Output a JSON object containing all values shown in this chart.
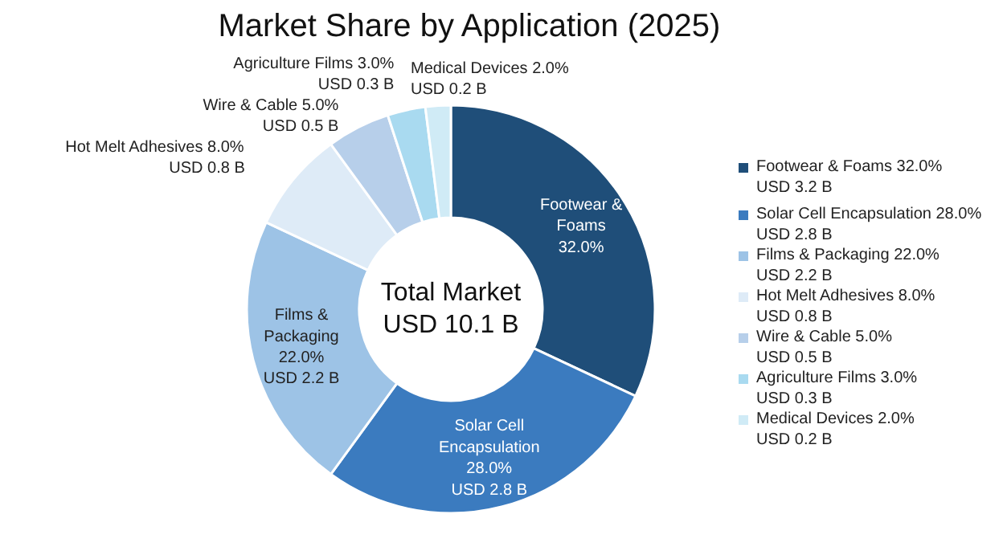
{
  "chart_data": {
    "type": "donut",
    "title": "Market Share by Application (2025)",
    "categories": [
      "Footwear & Foams 32.0%\nUSD 3.2 B",
      "Solar Cell Encapsulation 28.0%\nUSD 2.8 B",
      "Films & Packaging 22.0%\nUSD 2.2 B",
      "Hot Melt Adhesives 8.0%\nUSD 0.8 B",
      "Wire & Cable 5.0%\nUSD 0.5 B",
      "Agriculture Films 3.0%\nUSD 0.3 B",
      "Medical Devices 2.0%\nUSD 0.2 B"
    ],
    "values": [
      32,
      28,
      22,
      8,
      5,
      3,
      2
    ],
    "colors": [
      "#1f4e79",
      "#3b7bbf",
      "#9dc3e6",
      "#deebf7",
      "#b7cfea",
      "#a9daf0",
      "#d0ebf6"
    ],
    "value_labels": [
      "Footwear &\nFoams\n32.0%",
      "Solar Cell\nEncapsulation\n28.0%\nUSD 2.8 B",
      "Films &\nPackaging\n22.0%\nUSD 2.2 B",
      "Hot Melt Adhesives 8.0%\nUSD 0.8 B",
      "Wire & Cable 5.0%\nUSD 0.5 B",
      "Agriculture Films 3.0%\nUSD 0.3 B",
      "Medical Devices 2.0%\nUSD 0.2 B"
    ],
    "annotations": [
      "Total Market\nUSD 10.1 B"
    ],
    "legend": "right"
  }
}
